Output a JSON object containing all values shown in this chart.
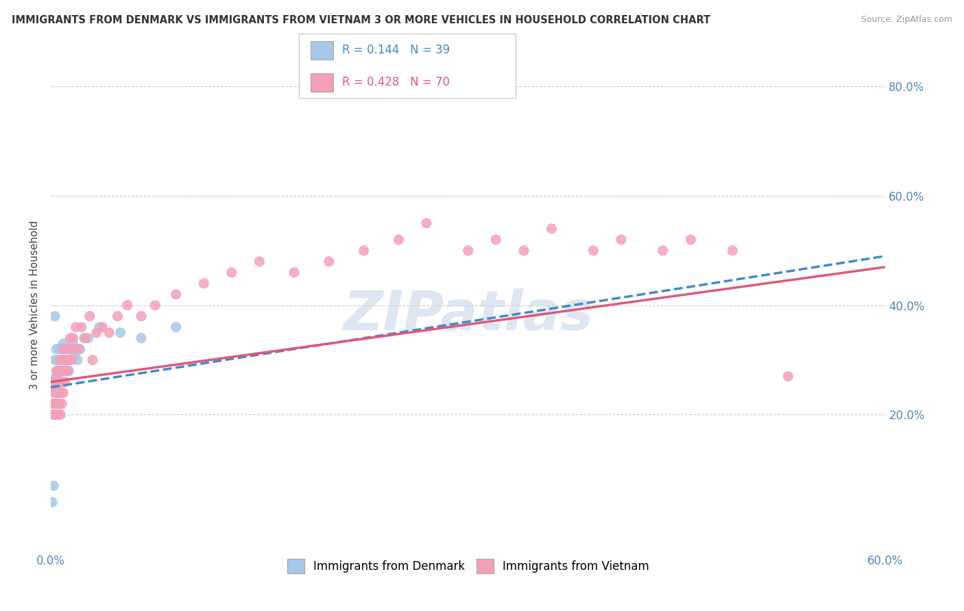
{
  "title": "IMMIGRANTS FROM DENMARK VS IMMIGRANTS FROM VIETNAM 3 OR MORE VEHICLES IN HOUSEHOLD CORRELATION CHART",
  "source": "Source: ZipAtlas.com",
  "legend_denmark": "Immigrants from Denmark",
  "legend_vietnam": "Immigrants from Vietnam",
  "R_denmark": 0.144,
  "N_denmark": 39,
  "R_vietnam": 0.428,
  "N_vietnam": 70,
  "denmark_color": "#a8c8e8",
  "vietnam_color": "#f4a0b8",
  "denmark_line_color": "#4488cc",
  "vietnam_line_color": "#e05878",
  "background_color": "#ffffff",
  "watermark_text": "ZIPatlas",
  "watermark_color": "#c8d8e8",
  "xlim": [
    0.0,
    0.6
  ],
  "ylim": [
    -0.05,
    0.85
  ],
  "denmark_x": [
    0.001,
    0.002,
    0.002,
    0.003,
    0.003,
    0.003,
    0.004,
    0.004,
    0.004,
    0.004,
    0.005,
    0.005,
    0.005,
    0.005,
    0.006,
    0.006,
    0.006,
    0.007,
    0.007,
    0.007,
    0.008,
    0.008,
    0.009,
    0.009,
    0.01,
    0.011,
    0.012,
    0.013,
    0.015,
    0.016,
    0.017,
    0.019,
    0.021,
    0.024,
    0.027,
    0.035,
    0.05,
    0.065,
    0.09
  ],
  "denmark_y": [
    0.04,
    0.07,
    0.2,
    0.25,
    0.3,
    0.38,
    0.22,
    0.27,
    0.32,
    0.27,
    0.24,
    0.28,
    0.3,
    0.25,
    0.26,
    0.28,
    0.32,
    0.26,
    0.3,
    0.28,
    0.28,
    0.32,
    0.3,
    0.33,
    0.3,
    0.32,
    0.3,
    0.28,
    0.32,
    0.33,
    0.31,
    0.3,
    0.32,
    0.34,
    0.34,
    0.36,
    0.35,
    0.34,
    0.36
  ],
  "vietnam_x": [
    0.001,
    0.001,
    0.002,
    0.002,
    0.003,
    0.003,
    0.003,
    0.004,
    0.004,
    0.004,
    0.005,
    0.005,
    0.005,
    0.006,
    0.006,
    0.006,
    0.006,
    0.007,
    0.007,
    0.007,
    0.007,
    0.008,
    0.008,
    0.008,
    0.009,
    0.009,
    0.009,
    0.01,
    0.01,
    0.011,
    0.011,
    0.012,
    0.012,
    0.013,
    0.014,
    0.015,
    0.016,
    0.017,
    0.018,
    0.02,
    0.022,
    0.025,
    0.028,
    0.03,
    0.033,
    0.037,
    0.042,
    0.048,
    0.055,
    0.065,
    0.075,
    0.09,
    0.11,
    0.13,
    0.15,
    0.175,
    0.2,
    0.225,
    0.25,
    0.27,
    0.3,
    0.32,
    0.34,
    0.36,
    0.39,
    0.41,
    0.44,
    0.46,
    0.49,
    0.53
  ],
  "vietnam_y": [
    0.22,
    0.26,
    0.2,
    0.24,
    0.2,
    0.22,
    0.26,
    0.2,
    0.24,
    0.28,
    0.22,
    0.24,
    0.28,
    0.2,
    0.22,
    0.26,
    0.28,
    0.2,
    0.24,
    0.26,
    0.3,
    0.22,
    0.26,
    0.3,
    0.24,
    0.28,
    0.32,
    0.26,
    0.3,
    0.28,
    0.32,
    0.28,
    0.32,
    0.3,
    0.34,
    0.3,
    0.34,
    0.32,
    0.36,
    0.32,
    0.36,
    0.34,
    0.38,
    0.3,
    0.35,
    0.36,
    0.35,
    0.38,
    0.4,
    0.38,
    0.4,
    0.42,
    0.44,
    0.46,
    0.48,
    0.46,
    0.48,
    0.5,
    0.52,
    0.55,
    0.5,
    0.52,
    0.5,
    0.54,
    0.5,
    0.52,
    0.5,
    0.52,
    0.5,
    0.27
  ]
}
